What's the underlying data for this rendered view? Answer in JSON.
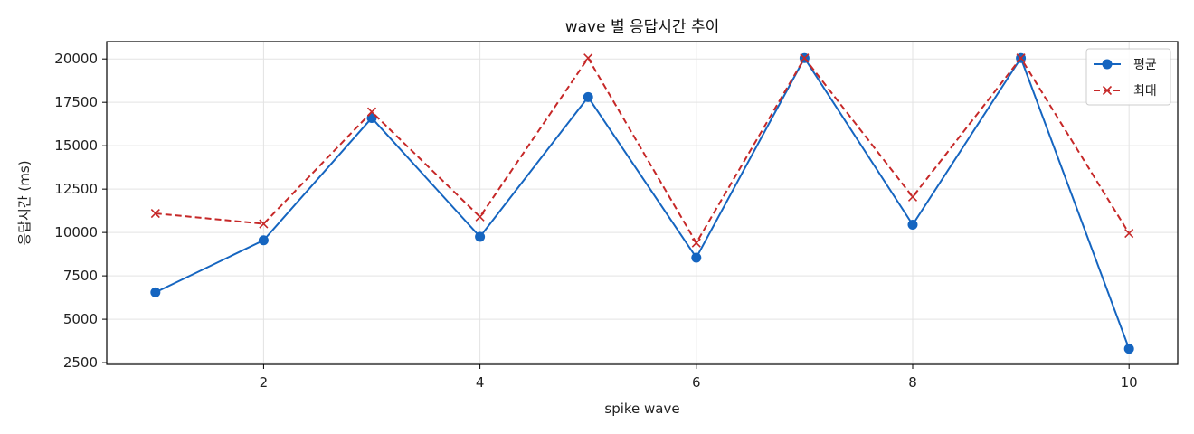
{
  "chart_data": {
    "type": "line",
    "title": "wave 별 응답시간 추이",
    "xlabel": "spike wave",
    "ylabel": "응답시간 (ms)",
    "x": [
      1,
      2,
      3,
      4,
      5,
      6,
      7,
      8,
      9,
      10
    ],
    "xlim": [
      0.55,
      10.45
    ],
    "ylim": [
      2400,
      21000
    ],
    "xticks": [
      2,
      4,
      6,
      8,
      10
    ],
    "yticks": [
      2500,
      5000,
      7500,
      10000,
      12500,
      15000,
      17500,
      20000
    ],
    "grid": true,
    "legend_position": "top-right",
    "series": [
      {
        "name": "평균",
        "color": "#1565c0",
        "line_style": "solid",
        "marker": "circle",
        "values": [
          6550,
          9550,
          16600,
          9750,
          17800,
          8550,
          20050,
          10450,
          20050,
          3300
        ]
      },
      {
        "name": "최대",
        "color": "#c62828",
        "line_style": "dashed",
        "marker": "x",
        "values": [
          11100,
          10500,
          16950,
          10900,
          20050,
          9400,
          20050,
          12050,
          20050,
          9950
        ]
      }
    ]
  }
}
